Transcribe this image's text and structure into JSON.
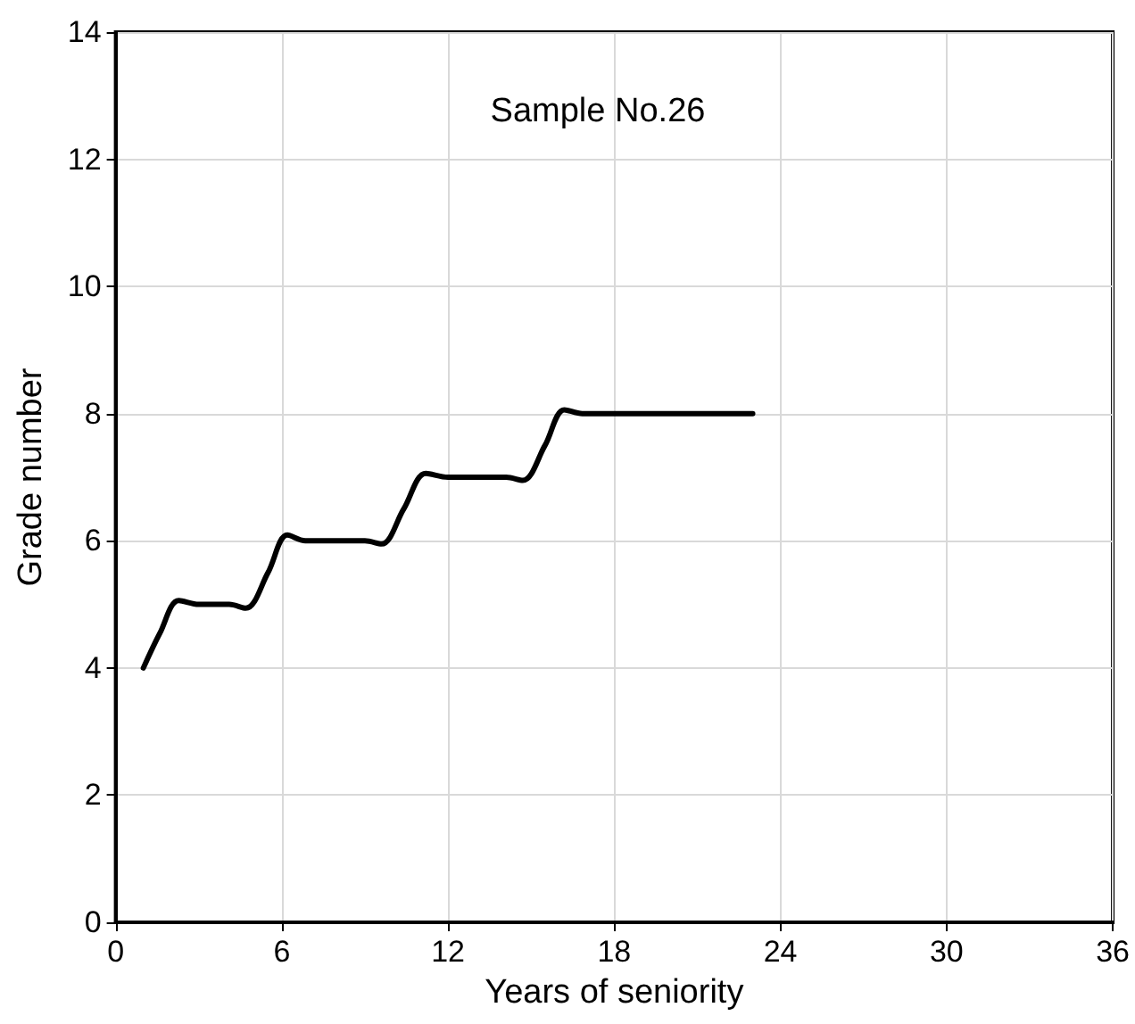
{
  "chart_data": {
    "type": "line",
    "title": "Sample No.26",
    "xlabel": "Years of seniority",
    "ylabel": "Grade number",
    "series": [
      {
        "color": "#000000",
        "x": [
          1,
          1.6,
          2.28,
          3,
          4.1,
          4.7,
          5.5,
          6.2,
          6.85,
          9,
          9.6,
          10.4,
          11.2,
          12,
          14.1,
          14.7,
          15.5,
          16.2,
          16.85,
          23
        ],
        "values": [
          4,
          4.55,
          5.06,
          5,
          5,
          4.94,
          5.5,
          6.09,
          6,
          6,
          5.95,
          6.5,
          7.06,
          7,
          7,
          6.95,
          7.5,
          8.06,
          8,
          8
        ]
      }
    ],
    "xlim": [
      0,
      36
    ],
    "xticks": [
      0,
      6,
      12,
      18,
      24,
      30,
      36
    ],
    "ylim": [
      0,
      14
    ],
    "yticks": [
      0,
      2,
      4,
      6,
      8,
      10,
      12,
      14
    ],
    "grid": true,
    "marker": "none",
    "line_style": "solid"
  }
}
